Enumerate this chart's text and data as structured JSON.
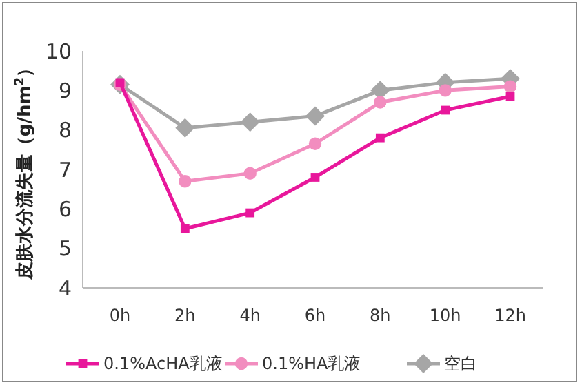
{
  "chart_data": {
    "type": "line",
    "ylabel": "皮肤水分流失量（g/hm$^{2}$）",
    "categories": [
      "0h",
      "2h",
      "4h",
      "6h",
      "8h",
      "10h",
      "12h"
    ],
    "series": [
      {
        "name": "0.1%AcHA乳液",
        "color": "#e8179b",
        "marker": "square",
        "values": [
          9.2,
          5.5,
          5.9,
          6.8,
          7.8,
          8.5,
          8.85
        ]
      },
      {
        "name": "0.1%HA乳液",
        "color": "#f28dbf",
        "marker": "circle",
        "values": [
          9.15,
          6.7,
          6.9,
          7.65,
          8.7,
          9.0,
          9.1
        ]
      },
      {
        "name": "空白",
        "color": "#a6a6a6",
        "marker": "diamond",
        "values": [
          9.15,
          8.05,
          8.2,
          8.35,
          9.0,
          9.2,
          9.3
        ]
      }
    ],
    "ylim": [
      4,
      10
    ],
    "yticks": [
      4,
      5,
      6,
      7,
      8,
      9,
      10
    ],
    "grid": false,
    "legend": "bottom"
  }
}
